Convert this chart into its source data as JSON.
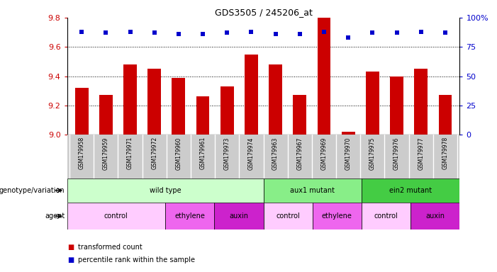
{
  "title": "GDS3505 / 245206_at",
  "samples": [
    "GSM179958",
    "GSM179959",
    "GSM179971",
    "GSM179972",
    "GSM179960",
    "GSM179961",
    "GSM179973",
    "GSM179974",
    "GSM179963",
    "GSM179967",
    "GSM179969",
    "GSM179970",
    "GSM179975",
    "GSM179976",
    "GSM179977",
    "GSM179978"
  ],
  "bar_values": [
    9.32,
    9.27,
    9.48,
    9.45,
    9.39,
    9.26,
    9.33,
    9.55,
    9.48,
    9.27,
    9.8,
    9.02,
    9.43,
    9.4,
    9.45,
    9.27
  ],
  "percentile_values": [
    88,
    87,
    88,
    87,
    86,
    86,
    87,
    88,
    86,
    86,
    88,
    83,
    87,
    87,
    88,
    87
  ],
  "bar_color": "#cc0000",
  "dot_color": "#0000cc",
  "ylim_left": [
    9.0,
    9.8
  ],
  "ylim_right": [
    0,
    100
  ],
  "yticks_left": [
    9.0,
    9.2,
    9.4,
    9.6,
    9.8
  ],
  "yticks_right": [
    0,
    25,
    50,
    75,
    100
  ],
  "ytick_labels_right": [
    "0",
    "25",
    "50",
    "75",
    "100%"
  ],
  "grid_values": [
    9.2,
    9.4,
    9.6
  ],
  "genotype_groups": [
    {
      "label": "wild type",
      "start": 0,
      "end": 8,
      "color": "#ccffcc"
    },
    {
      "label": "aux1 mutant",
      "start": 8,
      "end": 12,
      "color": "#88ee88"
    },
    {
      "label": "ein2 mutant",
      "start": 12,
      "end": 16,
      "color": "#44cc44"
    }
  ],
  "agent_groups": [
    {
      "label": "control",
      "start": 0,
      "end": 4,
      "color": "#ffccff"
    },
    {
      "label": "ethylene",
      "start": 4,
      "end": 6,
      "color": "#ee66ee"
    },
    {
      "label": "auxin",
      "start": 6,
      "end": 8,
      "color": "#cc22cc"
    },
    {
      "label": "control",
      "start": 8,
      "end": 10,
      "color": "#ffccff"
    },
    {
      "label": "ethylene",
      "start": 10,
      "end": 12,
      "color": "#ee66ee"
    },
    {
      "label": "control",
      "start": 12,
      "end": 14,
      "color": "#ffccff"
    },
    {
      "label": "auxin",
      "start": 14,
      "end": 16,
      "color": "#cc22cc"
    }
  ],
  "legend_items": [
    {
      "label": "transformed count",
      "color": "#cc0000"
    },
    {
      "label": "percentile rank within the sample",
      "color": "#0000cc"
    }
  ],
  "background_color": "#ffffff",
  "sample_area_color": "#cccccc"
}
